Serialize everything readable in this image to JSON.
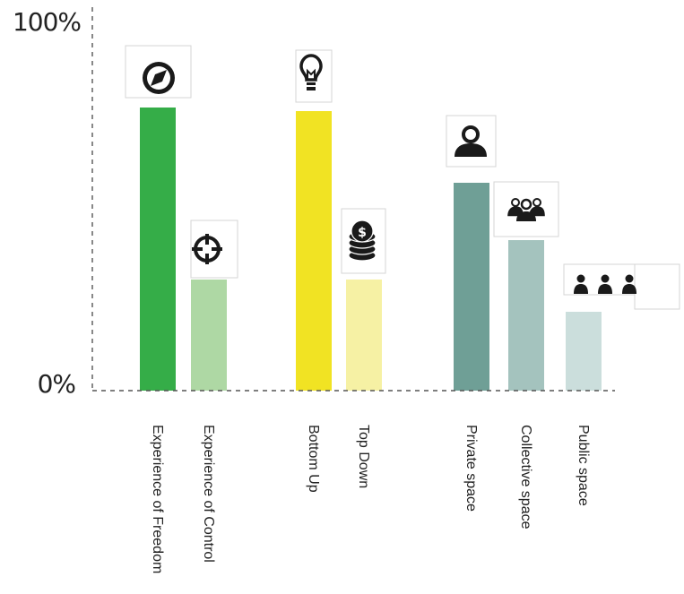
{
  "chart_data": {
    "type": "bar",
    "y_tick_labels": [
      "0%",
      "100%"
    ],
    "ylim": [
      0,
      100
    ],
    "grid": false,
    "axis_style": "dashed",
    "categories": [
      "Experience of Freedom",
      "Experience of Control",
      "Bottom Up",
      "Top Down",
      "Private space",
      "Collective space",
      "Public space"
    ],
    "values": [
      79,
      31,
      78,
      31,
      58,
      42,
      22
    ],
    "colors": [
      "#35ad48",
      "#aed8a4",
      "#f1e323",
      "#f6f1a4",
      "#6f9f96",
      "#a4c3be",
      "#cbdedc"
    ],
    "icons": [
      "compass-icon",
      "crosshair-icon",
      "lightbulb-icon",
      "coin-stack-icon",
      "person-icon",
      "group-icon",
      "crowd-icon"
    ]
  }
}
